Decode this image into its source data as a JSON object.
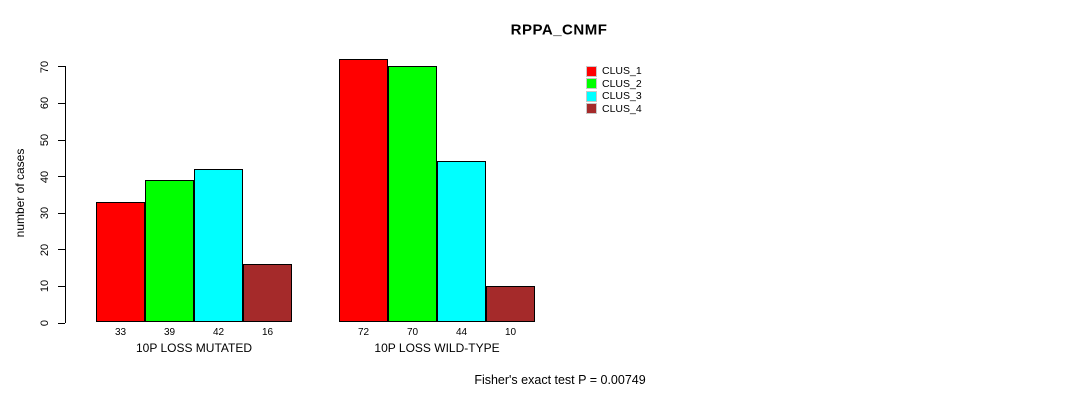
{
  "chart_data": {
    "type": "bar",
    "title": "RPPA_CNMF",
    "ylabel": "number of cases",
    "xlabel": "",
    "categories": [
      "10P LOSS MUTATED",
      "10P LOSS WILD-TYPE"
    ],
    "series": [
      {
        "name": "CLUS_1",
        "color": "#ff0000",
        "values": [
          33,
          72
        ]
      },
      {
        "name": "CLUS_2",
        "color": "#00ff00",
        "values": [
          39,
          70
        ]
      },
      {
        "name": "CLUS_3",
        "color": "#00ffff",
        "values": [
          42,
          44
        ]
      },
      {
        "name": "CLUS_4",
        "color": "#a52a2a",
        "values": [
          16,
          10
        ]
      }
    ],
    "yticks": [
      0,
      10,
      20,
      30,
      40,
      50,
      60,
      70
    ],
    "ylim": [
      0,
      72
    ],
    "bar_value_labels_shown": true,
    "grid": false,
    "legend_position": "top-right",
    "annotation": "Fisher's exact test P = 0.00749"
  },
  "legend": {
    "entries": [
      "CLUS_1",
      "CLUS_2",
      "CLUS_3",
      "CLUS_4"
    ],
    "colors": [
      "#ff0000",
      "#00ff00",
      "#00ffff",
      "#a52a2a"
    ]
  },
  "colors": {
    "background": "#ffffff",
    "axis": "#000000",
    "bar_border": "#000000",
    "text": "#000000"
  }
}
